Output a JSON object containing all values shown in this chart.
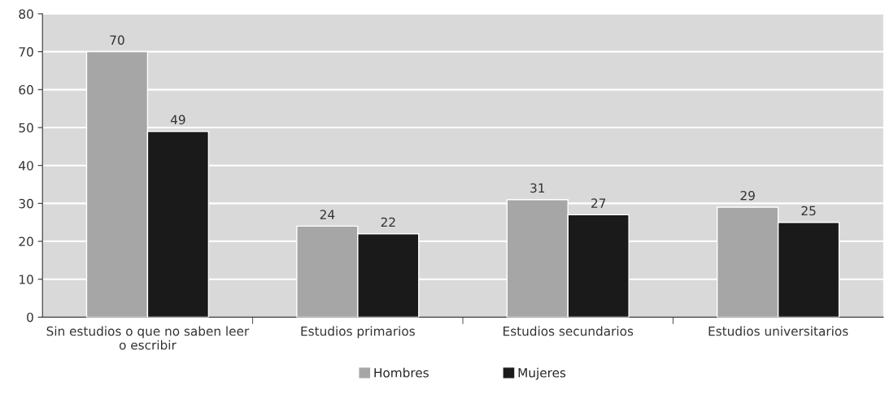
{
  "chart_data": {
    "type": "bar",
    "categories": [
      "Sin estudios o que no saben leer\no escribir",
      "Estudios primarios",
      "Estudios secundarios",
      "Estudios universitarios"
    ],
    "series": [
      {
        "name": "Hombres",
        "color": "#a6a6a6",
        "values": [
          70,
          24,
          31,
          29
        ]
      },
      {
        "name": "Mujeres",
        "color": "#1a1a1a",
        "values": [
          49,
          22,
          27,
          25
        ]
      }
    ],
    "ylim": [
      0,
      80
    ],
    "yticks": [
      0,
      10,
      20,
      30,
      40,
      50,
      60,
      70,
      80
    ],
    "grid": "y",
    "legend": "bottom",
    "data_labels": true
  }
}
